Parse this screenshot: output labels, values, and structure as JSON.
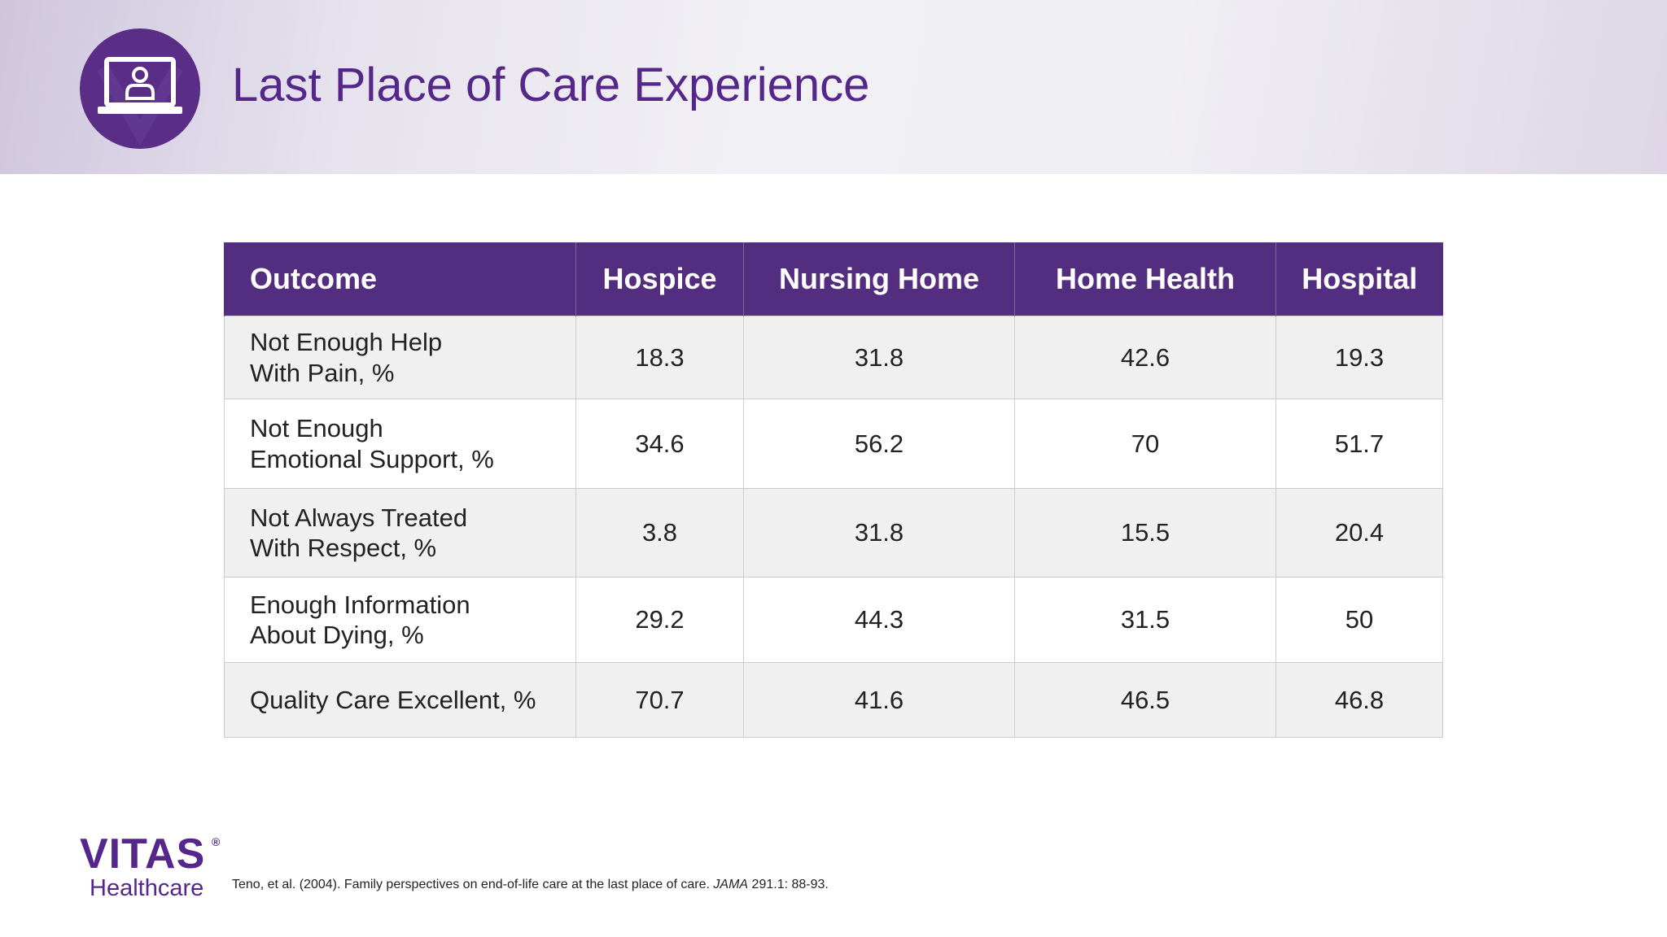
{
  "header": {
    "title": "Last Place of Care Experience",
    "icon": "laptop-user-icon",
    "accent_color": "#522d80"
  },
  "table": {
    "columns": [
      "Outcome",
      "Hospice",
      "Nursing Home",
      "Home Health",
      "Hospital"
    ],
    "rows": [
      {
        "outcome": "Not Enough Help\nWith Pain, %",
        "values": [
          "18.3",
          "31.8",
          "42.6",
          "19.3"
        ]
      },
      {
        "outcome": "Not Enough\nEmotional Support, %",
        "values": [
          "34.6",
          "56.2",
          "70",
          "51.7"
        ]
      },
      {
        "outcome": "Not Always Treated\nWith Respect, %",
        "values": [
          "3.8",
          "31.8",
          "15.5",
          "20.4"
        ]
      },
      {
        "outcome": "Enough Information\nAbout Dying, %",
        "values": [
          "29.2",
          "44.3",
          "31.5",
          "50"
        ]
      },
      {
        "outcome": "Quality Care Excellent, %",
        "values": [
          "70.7",
          "41.6",
          "46.5",
          "46.8"
        ]
      }
    ]
  },
  "logo": {
    "name": "VITAS",
    "registered": "®",
    "subtitle": "Healthcare"
  },
  "citation": {
    "text": "Teno, et al. (2004). Family perspectives on end-of-life care at the last place of care.",
    "journal": "JAMA",
    "details": "291.1: 88-93."
  }
}
